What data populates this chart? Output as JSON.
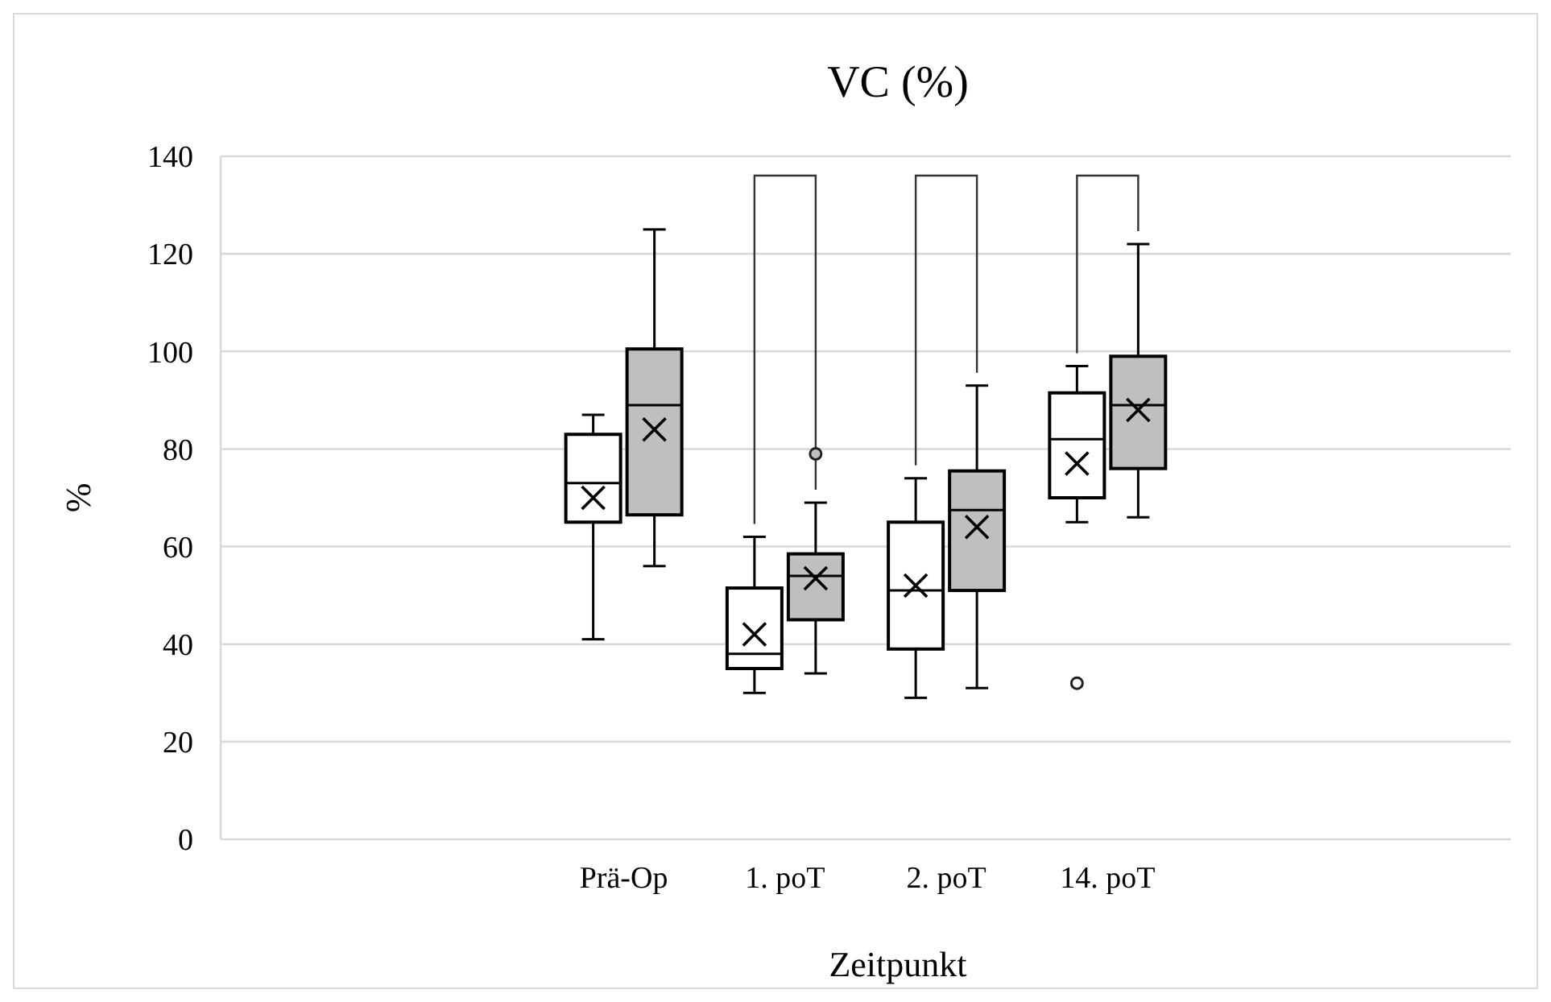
{
  "chart_data": {
    "type": "box",
    "title": "VC (%)",
    "xlabel": "Zeitpunkt",
    "ylabel": "%",
    "categories": [
      null,
      null,
      "Prä-Op",
      "1. poT",
      "2. poT",
      "14. poT",
      null,
      null
    ],
    "ylim": [
      0,
      140
    ],
    "yticks": [
      0,
      20,
      40,
      60,
      80,
      100,
      120,
      140
    ],
    "grid": "y",
    "series": [
      {
        "color": "#ffffff",
        "boxes": [
          null,
          null,
          {
            "low": 41,
            "q1": 65,
            "median": 73,
            "q3": 83,
            "high": 87,
            "mean": 70
          },
          {
            "low": 30,
            "q1": 35,
            "median": 38,
            "q3": 51.5,
            "high": 62,
            "mean": 42
          },
          {
            "low": 29,
            "q1": 39,
            "median": 51,
            "q3": 65,
            "high": 74,
            "mean": 52
          },
          {
            "low": 65,
            "q1": 70,
            "median": 82,
            "q3": 91.5,
            "high": 97,
            "mean": 77,
            "outliers": [
              32
            ]
          },
          null,
          null
        ]
      },
      {
        "color": "#bfbfbf",
        "boxes": [
          null,
          null,
          {
            "low": 56,
            "q1": 66.5,
            "median": 89,
            "q3": 100.5,
            "high": 125,
            "mean": 84
          },
          {
            "low": 34,
            "q1": 45,
            "median": 54,
            "q3": 58.5,
            "high": 69,
            "mean": 53.5,
            "outliers": [
              79
            ]
          },
          {
            "low": 31,
            "q1": 51,
            "median": 67.5,
            "q3": 75.5,
            "high": 93,
            "mean": 64
          },
          {
            "low": 66,
            "q1": 76,
            "median": 89,
            "q3": 99,
            "high": 122,
            "mean": 88
          },
          null,
          null
        ]
      }
    ]
  }
}
